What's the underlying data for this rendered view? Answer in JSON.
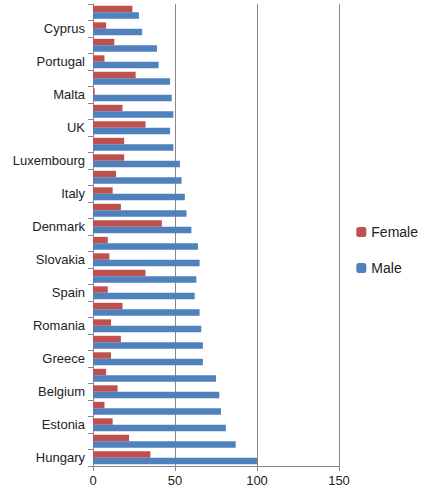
{
  "chart_data": {
    "type": "bar",
    "orientation": "horizontal",
    "categories": [
      null,
      "Cyprus",
      null,
      "Portugal",
      null,
      "Malta",
      null,
      "UK",
      null,
      "Luxembourg",
      null,
      "Italy",
      null,
      "Denmark",
      null,
      "Slovakia",
      null,
      "Spain",
      null,
      "Romania",
      null,
      "Greece",
      null,
      "Belgium",
      null,
      "Estonia",
      null,
      "Hungary"
    ],
    "series": [
      {
        "name": "Female",
        "color": "#c0504d",
        "values": [
          24,
          8,
          13,
          7,
          26,
          1,
          18,
          32,
          19,
          19,
          14,
          12,
          17,
          42,
          9,
          10,
          32,
          9,
          18,
          11,
          17,
          11,
          8,
          15,
          7,
          12,
          22,
          35
        ]
      },
      {
        "name": "Male",
        "color": "#4f81bd",
        "values": [
          28,
          30,
          39,
          40,
          47,
          48,
          49,
          47,
          49,
          53,
          54,
          56,
          57,
          60,
          64,
          65,
          63,
          62,
          65,
          66,
          67,
          67,
          75,
          77,
          78,
          81,
          87,
          100
        ]
      }
    ],
    "xlim": [
      0,
      150
    ],
    "xticks": [
      0,
      50,
      100,
      150
    ],
    "grid": true,
    "legend": "right"
  }
}
